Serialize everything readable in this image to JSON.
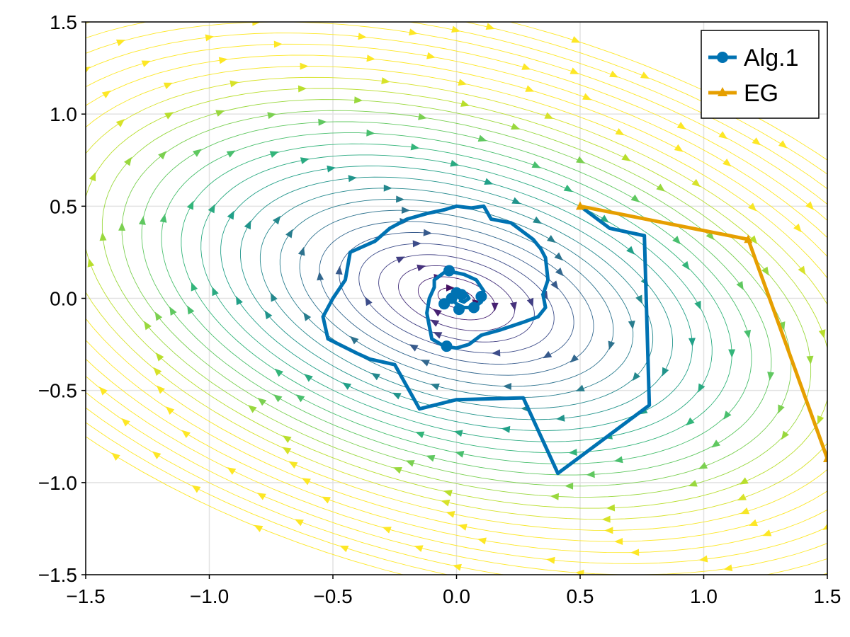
{
  "chart_data": {
    "type": "line",
    "title": "",
    "xlabel": "",
    "ylabel": "",
    "xlim": [
      -1.5,
      1.5
    ],
    "ylim": [
      -1.5,
      1.5
    ],
    "grid": true,
    "background": "streamplot (viridis-colored flow field spiraling toward origin)",
    "legend_position": "top-right",
    "x_ticks": [
      {
        "value": -1.5,
        "label": "−1.5"
      },
      {
        "value": -1.0,
        "label": "−1.0"
      },
      {
        "value": -0.5,
        "label": "−0.5"
      },
      {
        "value": 0.0,
        "label": "0.0"
      },
      {
        "value": 0.5,
        "label": "0.5"
      },
      {
        "value": 1.0,
        "label": "1.0"
      },
      {
        "value": 1.5,
        "label": "1.5"
      }
    ],
    "y_ticks": [
      {
        "value": -1.5,
        "label": "−1.5"
      },
      {
        "value": -1.0,
        "label": "−1.0"
      },
      {
        "value": -0.5,
        "label": "−0.5"
      },
      {
        "value": 0.0,
        "label": "0.0"
      },
      {
        "value": 0.5,
        "label": "0.5"
      },
      {
        "value": 1.0,
        "label": "1.0"
      },
      {
        "value": 1.5,
        "label": "1.5"
      }
    ],
    "series": [
      {
        "name": "Alg.1",
        "color": "#0072b2",
        "marker": "circle",
        "points": [
          [
            0.5,
            0.5
          ],
          [
            0.62,
            0.38
          ],
          [
            0.76,
            0.34
          ],
          [
            0.78,
            -0.58
          ],
          [
            0.41,
            -0.95
          ],
          [
            0.27,
            -0.54
          ],
          [
            0.0,
            -0.55
          ],
          [
            -0.15,
            -0.6
          ],
          [
            -0.25,
            -0.36
          ],
          [
            -0.35,
            -0.33
          ],
          [
            -0.4,
            -0.3
          ],
          [
            -0.52,
            -0.22
          ],
          [
            -0.54,
            -0.1
          ],
          [
            -0.5,
            0.0
          ],
          [
            -0.45,
            0.1
          ],
          [
            -0.43,
            0.25
          ],
          [
            -0.33,
            0.31
          ],
          [
            -0.27,
            0.38
          ],
          [
            -0.2,
            0.43
          ],
          [
            -0.12,
            0.46
          ],
          [
            -0.05,
            0.48
          ],
          [
            0.0,
            0.5
          ],
          [
            0.06,
            0.49
          ],
          [
            0.11,
            0.5
          ],
          [
            0.14,
            0.43
          ],
          [
            0.22,
            0.41
          ],
          [
            0.27,
            0.36
          ],
          [
            0.31,
            0.32
          ],
          [
            0.34,
            0.27
          ],
          [
            0.36,
            0.22
          ],
          [
            0.37,
            0.1
          ],
          [
            0.35,
            0.02
          ],
          [
            0.36,
            -0.05
          ],
          [
            0.33,
            -0.1
          ],
          [
            0.27,
            -0.13
          ],
          [
            0.18,
            -0.17
          ],
          [
            0.1,
            -0.2
          ],
          [
            0.05,
            -0.25
          ],
          [
            0.0,
            -0.27
          ],
          [
            -0.05,
            -0.26
          ],
          [
            -0.1,
            -0.22
          ],
          [
            -0.11,
            -0.15
          ],
          [
            -0.12,
            -0.08
          ],
          [
            -0.11,
            0.0
          ],
          [
            -0.09,
            0.06
          ],
          [
            -0.09,
            0.1
          ],
          [
            -0.04,
            0.15
          ],
          [
            0.03,
            0.13
          ],
          [
            0.08,
            0.1
          ],
          [
            0.11,
            0.04
          ],
          [
            0.1,
            -0.02
          ],
          [
            0.07,
            -0.05
          ],
          [
            0.03,
            -0.05
          ],
          [
            0.0,
            -0.03
          ],
          [
            -0.02,
            0.0
          ],
          [
            -0.01,
            0.03
          ],
          [
            0.02,
            0.04
          ],
          [
            0.04,
            0.02
          ],
          [
            0.05,
            0.0
          ],
          [
            0.03,
            -0.02
          ],
          [
            0.01,
            -0.01
          ]
        ],
        "marked_points": [
          [
            -0.03,
            0.15
          ],
          [
            -0.04,
            -0.26
          ],
          [
            0.1,
            0.01
          ],
          [
            0.07,
            -0.05
          ],
          [
            0.0,
            0.03
          ],
          [
            -0.02,
            0.0
          ],
          [
            0.02,
            0.02
          ],
          [
            0.01,
            -0.06
          ],
          [
            -0.05,
            -0.03
          ]
        ]
      },
      {
        "name": "EG",
        "color": "#e69f00",
        "marker": "triangle",
        "points": [
          [
            0.5,
            0.5
          ],
          [
            1.18,
            0.32
          ],
          [
            1.5,
            -0.87
          ]
        ]
      }
    ]
  }
}
